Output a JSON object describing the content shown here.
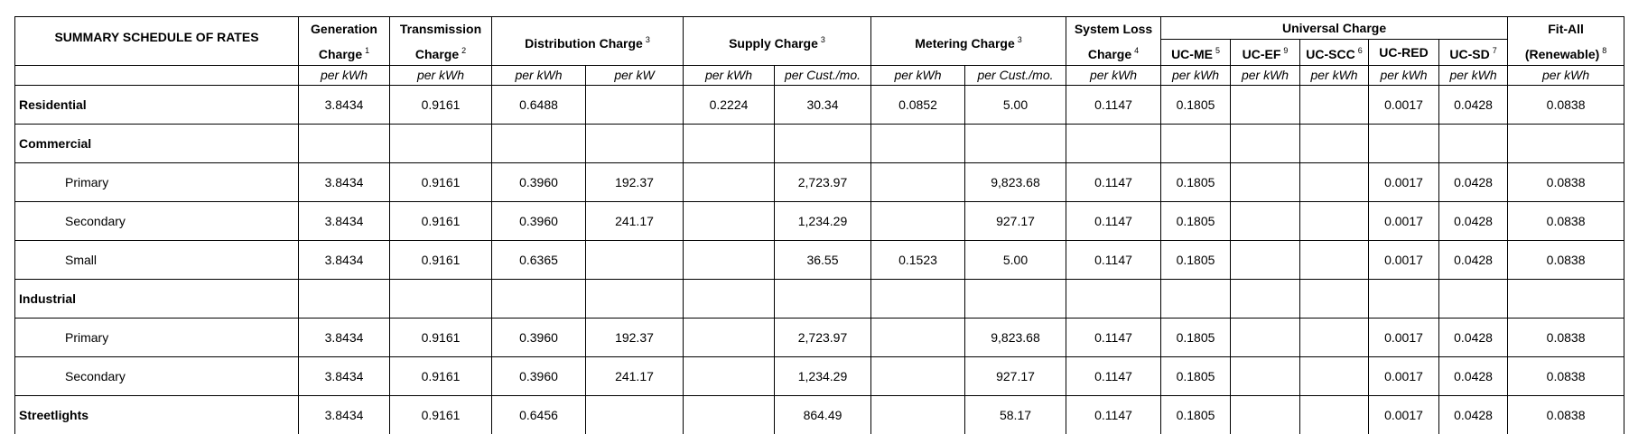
{
  "table": {
    "title": "SUMMARY SCHEDULE OF RATES",
    "headers": [
      {
        "text": "Generation Charge",
        "note": "1"
      },
      {
        "text": "Transmission Charge",
        "note": "2"
      },
      {
        "text": "Distribution Charge",
        "note": "3"
      },
      {
        "text": "Supply Charge",
        "note": "3"
      },
      {
        "text": "Metering Charge",
        "note": "3"
      },
      {
        "text": "System Loss Charge",
        "note": "4"
      },
      {
        "text": "Universal Charge"
      },
      {
        "text": "Fit-All (Renewable)",
        "note": "8"
      }
    ],
    "sub_headers": [
      {
        "text": "UC-ME",
        "note": "5"
      },
      {
        "text": "UC-EF",
        "note": "9"
      },
      {
        "text": "UC-SCC",
        "note": "6"
      },
      {
        "text": "UC-RED"
      },
      {
        "text": "UC-SD",
        "note": "7"
      }
    ],
    "units": [
      "per kWh",
      "per kWh",
      "per kWh",
      "per kW",
      "per kWh",
      "per Cust./mo.",
      "per kWh",
      "per Cust./mo.",
      "per kWh",
      "per kWh",
      "per kWh",
      "per kWh",
      "per kWh",
      "per kWh",
      "per kWh"
    ],
    "rows": [
      {
        "label": "Residential",
        "cells": [
          "3.8434",
          "0.9161",
          "0.6488",
          null,
          "0.2224",
          "30.34",
          "0.0852",
          "5.00",
          "0.1147",
          "0.1805",
          null,
          null,
          "0.0017",
          "0.0428",
          "0.0838"
        ]
      },
      {
        "label": "Commercial",
        "group": true
      },
      {
        "label": "Primary",
        "indent": true,
        "cells": [
          "3.8434",
          "0.9161",
          "0.3960",
          "192.37",
          null,
          "2,723.97",
          null,
          "9,823.68",
          "0.1147",
          "0.1805",
          null,
          null,
          "0.0017",
          "0.0428",
          "0.0838"
        ]
      },
      {
        "label": "Secondary",
        "indent": true,
        "cells": [
          "3.8434",
          "0.9161",
          "0.3960",
          "241.17",
          null,
          "1,234.29",
          null,
          "927.17",
          "0.1147",
          "0.1805",
          null,
          null,
          "0.0017",
          "0.0428",
          "0.0838"
        ]
      },
      {
        "label": "Small",
        "indent": true,
        "cells": [
          "3.8434",
          "0.9161",
          "0.6365",
          null,
          null,
          "36.55",
          "0.1523",
          "5.00",
          "0.1147",
          "0.1805",
          null,
          null,
          "0.0017",
          "0.0428",
          "0.0838"
        ]
      },
      {
        "label": "Industrial",
        "group": true
      },
      {
        "label": "Primary",
        "indent": true,
        "cells": [
          "3.8434",
          "0.9161",
          "0.3960",
          "192.37",
          null,
          "2,723.97",
          null,
          "9,823.68",
          "0.1147",
          "0.1805",
          null,
          null,
          "0.0017",
          "0.0428",
          "0.0838"
        ]
      },
      {
        "label": "Secondary",
        "indent": true,
        "cells": [
          "3.8434",
          "0.9161",
          "0.3960",
          "241.17",
          null,
          "1,234.29",
          null,
          "927.17",
          "0.1147",
          "0.1805",
          null,
          null,
          "0.0017",
          "0.0428",
          "0.0838"
        ]
      },
      {
        "label": "Streetlights",
        "cells": [
          "3.8434",
          "0.9161",
          "0.6456",
          null,
          null,
          "864.49",
          null,
          "58.17",
          "0.1147",
          "0.1805",
          null,
          null,
          "0.0017",
          "0.0428",
          "0.0838"
        ]
      }
    ]
  }
}
